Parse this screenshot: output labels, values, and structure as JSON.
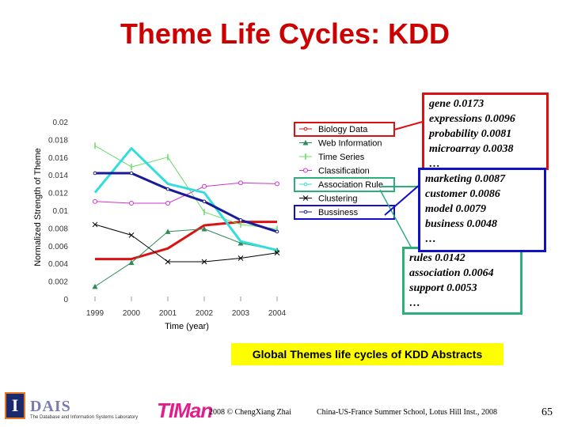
{
  "slide": {
    "title": "Theme Life Cycles: KDD",
    "caption": "Global Themes life cycles of KDD Abstracts",
    "footer_left": "2008 © ChengXiang Zhai",
    "footer_center": "China-US-France Summer School, Lotus Hill Inst., 2008",
    "page_number": "65"
  },
  "logos": {
    "illinois_letter": "I",
    "dais_word": "DAIS",
    "dais_text": "The Database and Information Systems Laboratory",
    "timan": "TIMan"
  },
  "annotations": {
    "red_box": [
      "gene 0.0173",
      "expressions 0.0096",
      "probability 0.0081",
      "microarray 0.0038",
      "…"
    ],
    "blue_box": [
      "marketing 0.0087",
      "customer 0.0086",
      "model 0.0079",
      "business 0.0048",
      "…"
    ],
    "green_box": [
      "rules 0.0142",
      "association 0.0064",
      "support 0.0053",
      "…"
    ],
    "colors": {
      "red": "#dd1111",
      "blue": "#1111cc",
      "green": "#2bb07a"
    }
  },
  "chart_data": {
    "type": "line",
    "title": "",
    "xlabel": "Time (year)",
    "ylabel": "Normalized Strength of Theme",
    "x": [
      "1999",
      "2000",
      "2001",
      "2002",
      "2003",
      "2004"
    ],
    "ylim": [
      0,
      0.02
    ],
    "yticks": [
      "0",
      "0.002",
      "0.004",
      "0.006",
      "0.008",
      "0.01",
      "0.012",
      "0.014",
      "0.016",
      "0.018",
      "0.02"
    ],
    "legend_position": "top-right inside plot",
    "series": [
      {
        "name": "Biology Data",
        "color": "#dd1111",
        "width": 3,
        "marker": "none",
        "values": [
          0.0045,
          0.0045,
          0.0057,
          0.0083,
          0.0087,
          0.0087
        ]
      },
      {
        "name": "Web Information",
        "color": "#2e8b57",
        "width": 1,
        "marker": "triangle",
        "values": [
          0.0014,
          0.0041,
          0.0076,
          0.0079,
          0.0063,
          0.0055
        ]
      },
      {
        "name": "Time Series",
        "color": "#66dd66",
        "width": 1,
        "marker": "bar",
        "values": [
          0.0173,
          0.0149,
          0.016,
          0.0098,
          0.0084,
          0.0079
        ]
      },
      {
        "name": "Classification",
        "color": "#cc33cc",
        "width": 1,
        "marker": "circle",
        "values": [
          0.011,
          0.0108,
          0.0108,
          0.0127,
          0.0131,
          0.013
        ]
      },
      {
        "name": "Association Rule",
        "color": "#33dddd",
        "width": 3,
        "marker": "none",
        "values": [
          0.012,
          0.017,
          0.013,
          0.012,
          0.0065,
          0.0055
        ]
      },
      {
        "name": "Clustering",
        "color": "#000000",
        "width": 1,
        "marker": "x",
        "values": [
          0.0084,
          0.0072,
          0.0042,
          0.0042,
          0.0046,
          0.0052
        ]
      },
      {
        "name": "Bussiness",
        "color": "#1a1a99",
        "width": 3,
        "marker": "circle-small",
        "values": [
          0.0142,
          0.0142,
          0.0124,
          0.011,
          0.0089,
          0.0076
        ]
      }
    ]
  }
}
